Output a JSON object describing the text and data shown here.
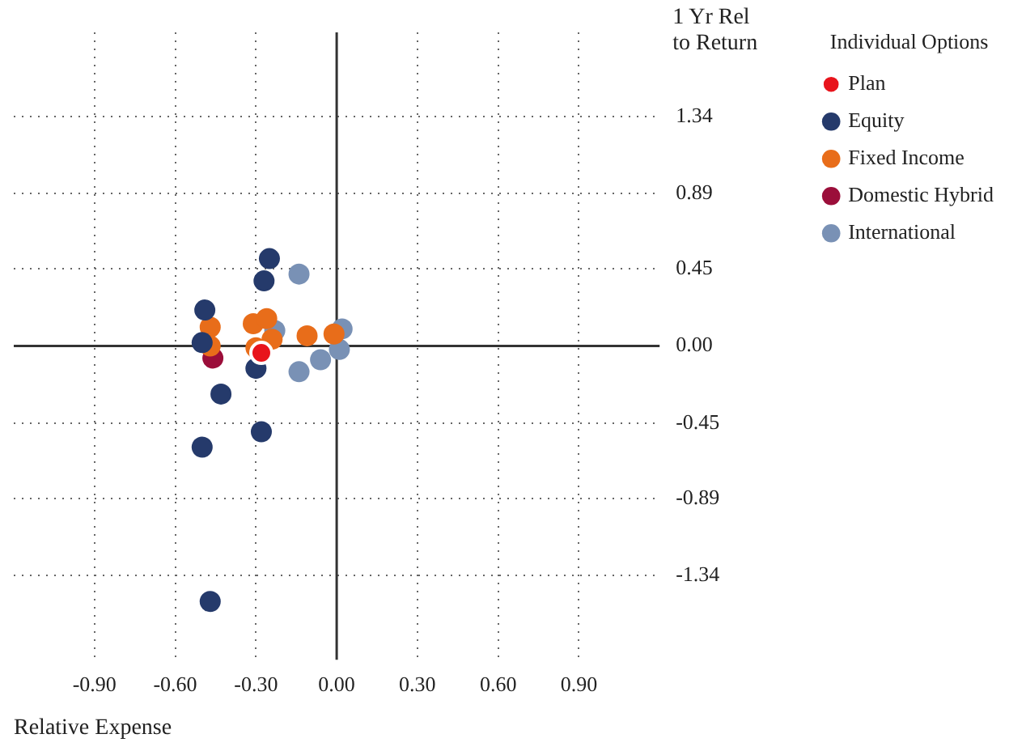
{
  "chart_data": {
    "type": "scatter",
    "xlabel": "Relative Expense",
    "ylabel": "1 Yr Rel\nto Return",
    "legend_title": "Individual Options",
    "legend": "top right",
    "grid": true,
    "marker": "circle",
    "xlim": [
      -1.2,
      1.2
    ],
    "xticks": [
      {
        "value": -0.9,
        "label": "-0.90"
      },
      {
        "value": -0.6,
        "label": "-0.60"
      },
      {
        "value": -0.3,
        "label": "-0.30"
      },
      {
        "value": 0,
        "label": "0.00"
      },
      {
        "value": 0.3,
        "label": "0.30"
      },
      {
        "value": 0.6,
        "label": "0.60"
      },
      {
        "value": 0.9,
        "label": "0.90"
      }
    ],
    "ylim": [
      -1.83,
      1.83
    ],
    "yticks": [
      -1.34,
      -0.89,
      -0.45,
      {
        "value": 0,
        "label": "0.00"
      },
      0.45,
      0.89,
      1.34
    ],
    "series": [
      {
        "name": "Plan",
        "color": "#e8141c",
        "x": [
          -0.28
        ],
        "values": [
          -0.04
        ]
      },
      {
        "name": "Equity",
        "color": "#253a6b",
        "x": [
          -0.25,
          -0.27,
          -0.49,
          -0.5,
          -0.3,
          -0.43,
          -0.28,
          -0.5,
          -0.47
        ],
        "values": [
          0.51,
          0.38,
          0.21,
          0.02,
          -0.13,
          -0.28,
          -0.5,
          -0.59,
          -1.49
        ]
      },
      {
        "name": "Fixed Income",
        "color": "#e86d1a",
        "x": [
          -0.47,
          -0.31,
          -0.26,
          -0.24,
          -0.11,
          -0.01,
          -0.47,
          -0.3
        ],
        "values": [
          0.11,
          0.13,
          0.16,
          0.04,
          0.06,
          0.07,
          0.0,
          -0.01
        ]
      },
      {
        "name": "Domestic Hybrid",
        "color": "#9b0e3a",
        "x": [
          -0.46
        ],
        "values": [
          -0.07
        ]
      },
      {
        "name": "International",
        "color": "#7991b5",
        "x": [
          -0.14,
          -0.23,
          0.02,
          0.01,
          -0.06,
          -0.14
        ],
        "values": [
          0.42,
          0.09,
          0.1,
          -0.02,
          -0.08,
          -0.15
        ]
      }
    ]
  }
}
